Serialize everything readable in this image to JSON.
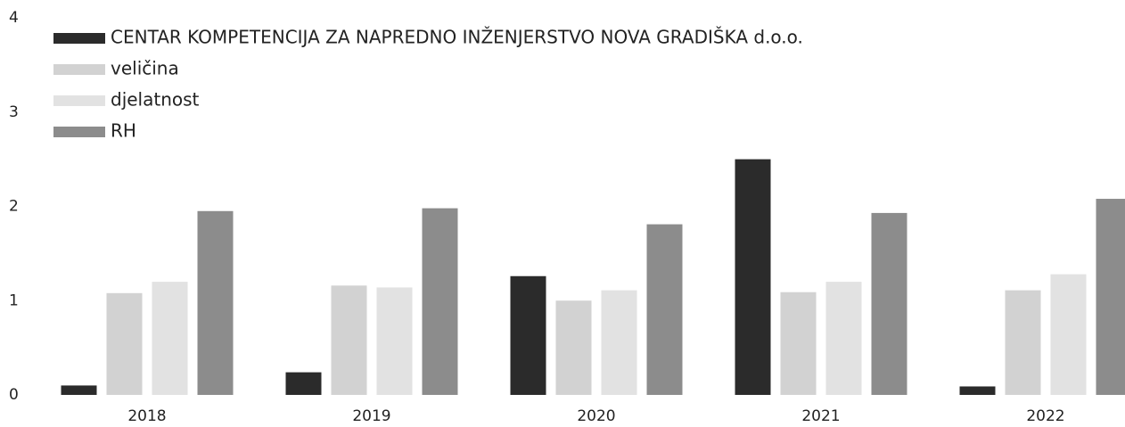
{
  "chart_data": {
    "type": "bar",
    "categories": [
      "2018",
      "2019",
      "2020",
      "2021",
      "2022"
    ],
    "series": [
      {
        "name": "CENTAR KOMPETENCIJA ZA NAPREDNO INŽENJERSTVO NOVA GRADIŠKA d.o.o.",
        "color": "#2b2b2b",
        "values": [
          0.1,
          0.24,
          1.26,
          2.5,
          0.09
        ]
      },
      {
        "name": "veličina",
        "color": "#d2d2d2",
        "values": [
          1.08,
          1.16,
          1.0,
          1.09,
          1.11
        ]
      },
      {
        "name": "djelatnost",
        "color": "#e2e2e2",
        "values": [
          1.2,
          1.14,
          1.11,
          1.2,
          1.28
        ]
      },
      {
        "name": "RH",
        "color": "#8c8c8c",
        "values": [
          1.95,
          1.98,
          1.81,
          1.93,
          2.08
        ]
      }
    ],
    "ylim": [
      0,
      4
    ],
    "yticks": [
      0,
      1,
      2,
      3,
      4
    ],
    "grid": false,
    "legend": "top-left"
  }
}
